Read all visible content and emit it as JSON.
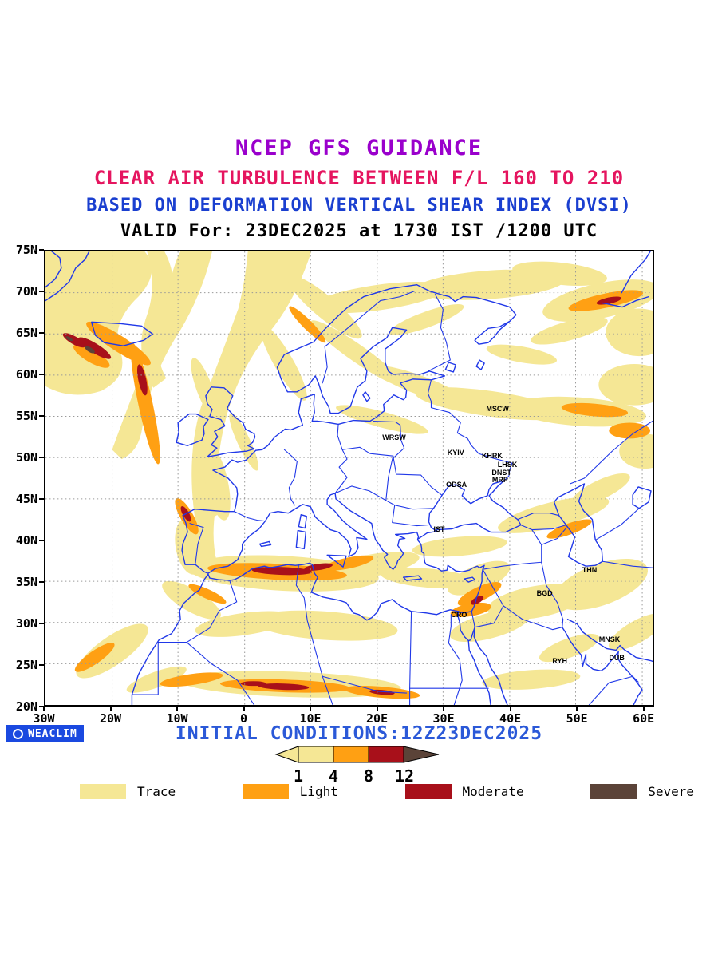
{
  "titles": {
    "line1": "NCEP GFS GUIDANCE",
    "line2": "CLEAR AIR TURBULENCE BETWEEN F/L 160 TO 210",
    "line3": "BASED ON DEFORMATION VERTICAL SHEAR INDEX (DVSI)",
    "line4": "VALID For: 23DEC2025 at 1730 IST /1200 UTC"
  },
  "colors": {
    "title1": "#9a00cc",
    "title2": "#e5155f",
    "title3": "#1a3fd0",
    "title4": "#000000",
    "map_line": "#2038e8",
    "grid": "#999999",
    "trace": "#f5e795",
    "light": "#ffa013",
    "moderate": "#a8101a",
    "severe": "#5b4338",
    "initial": "#2b59d8",
    "watermark_bg": "#1a49e0"
  },
  "map": {
    "lat_labels": [
      {
        "label": "75N",
        "lat": 75
      },
      {
        "label": "70N",
        "lat": 70
      },
      {
        "label": "65N",
        "lat": 65
      },
      {
        "label": "60N",
        "lat": 60
      },
      {
        "label": "55N",
        "lat": 55
      },
      {
        "label": "50N",
        "lat": 50
      },
      {
        "label": "45N",
        "lat": 45
      },
      {
        "label": "40N",
        "lat": 40
      },
      {
        "label": "35N",
        "lat": 35
      },
      {
        "label": "30N",
        "lat": 30
      },
      {
        "label": "25N",
        "lat": 25
      },
      {
        "label": "20N",
        "lat": 20
      }
    ],
    "lon_labels": [
      {
        "label": "30W",
        "lon": -30
      },
      {
        "label": "20W",
        "lon": -20
      },
      {
        "label": "10W",
        "lon": -10
      },
      {
        "label": "0",
        "lon": 0
      },
      {
        "label": "10E",
        "lon": 10
      },
      {
        "label": "20E",
        "lon": 20
      },
      {
        "label": "30E",
        "lon": 30
      },
      {
        "label": "40E",
        "lon": 40
      },
      {
        "label": "50E",
        "lon": 50
      },
      {
        "label": "60E",
        "lon": 60
      }
    ],
    "cities": [
      {
        "name": "MSCW",
        "lon": 38.2,
        "lat": 55.9
      },
      {
        "name": "WRSW",
        "lon": 22.6,
        "lat": 52.4
      },
      {
        "name": "KYIV",
        "lon": 31.9,
        "lat": 50.6
      },
      {
        "name": "KHRK",
        "lon": 37.4,
        "lat": 50.2
      },
      {
        "name": "LHSK",
        "lon": 39.7,
        "lat": 49.1
      },
      {
        "name": "DNST",
        "lon": 38.8,
        "lat": 48.2
      },
      {
        "name": "MRP",
        "lon": 38.6,
        "lat": 47.3
      },
      {
        "name": "ODSA",
        "lon": 32.0,
        "lat": 46.7
      },
      {
        "name": "IST",
        "lon": 29.4,
        "lat": 41.3
      },
      {
        "name": "THN",
        "lon": 52.1,
        "lat": 36.4
      },
      {
        "name": "BGD",
        "lon": 45.3,
        "lat": 33.6
      },
      {
        "name": "CRO",
        "lon": 32.4,
        "lat": 30.9
      },
      {
        "name": "MNSK",
        "lon": 55.1,
        "lat": 27.9
      },
      {
        "name": "RYH",
        "lon": 47.6,
        "lat": 25.3
      },
      {
        "name": "DUB",
        "lon": 56.2,
        "lat": 25.7
      }
    ]
  },
  "scale": {
    "numbers": [
      "1",
      "4",
      "8",
      "12"
    ]
  },
  "legend": {
    "items": [
      {
        "label": "Trace",
        "color": "#f5e795"
      },
      {
        "label": "Light",
        "color": "#ffa013"
      },
      {
        "label": "Moderate",
        "color": "#a8101a"
      },
      {
        "label": "Severe",
        "color": "#5b4338"
      }
    ]
  },
  "watermark": {
    "label": "WEACLIM"
  },
  "footer": {
    "initial_conditions": "INITIAL CONDITIONS:12Z23DEC2025"
  }
}
